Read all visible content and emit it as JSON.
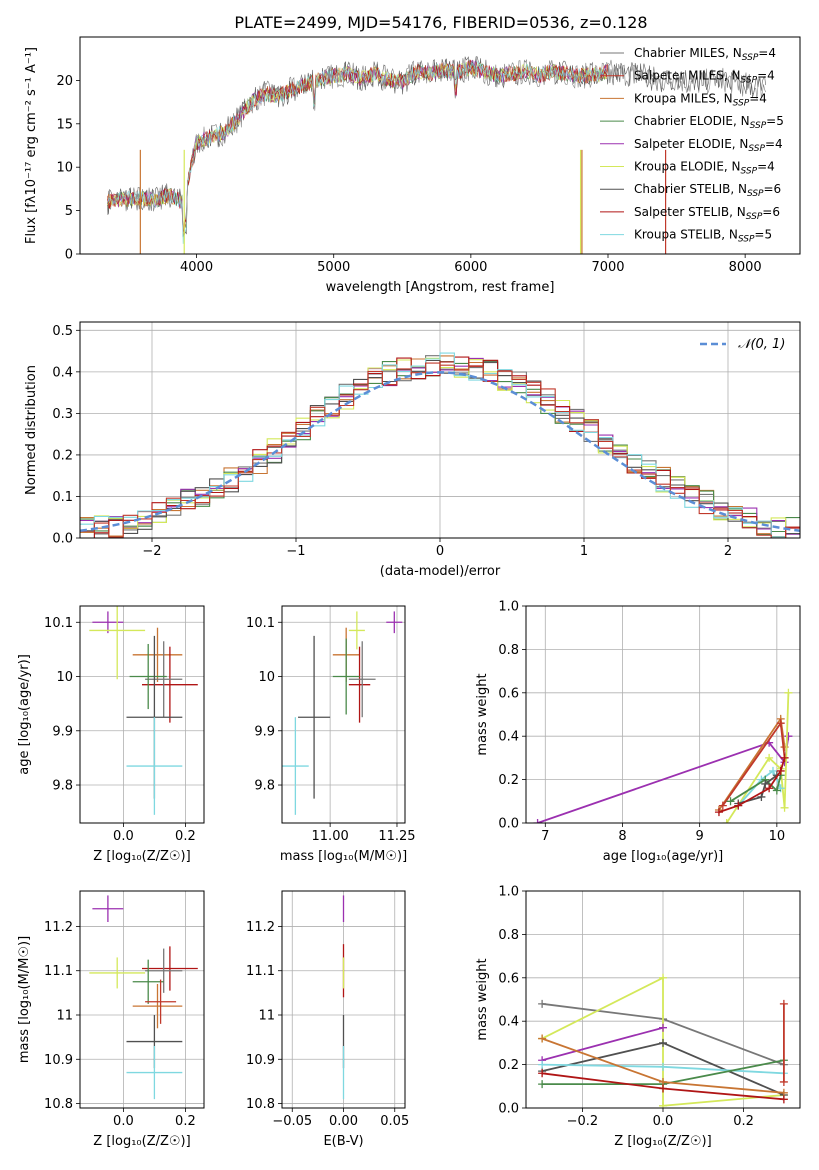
{
  "figure_title": "PLATE=2499, MJD=54176, FIBERID=0536, z=0.128",
  "series": [
    {
      "model": "Chabrier",
      "lib": "MILES",
      "nssp": "4",
      "color": "#777777"
    },
    {
      "model": "Salpeter",
      "lib": "MILES",
      "nssp": "4",
      "color": "#c0392b"
    },
    {
      "model": "Kroupa",
      "lib": "MILES",
      "nssp": "4",
      "color": "#c87533"
    },
    {
      "model": "Chabrier",
      "lib": "ELODIE",
      "nssp": "5",
      "color": "#4a8a4a"
    },
    {
      "model": "Salpeter",
      "lib": "ELODIE",
      "nssp": "4",
      "color": "#9b30b0"
    },
    {
      "model": "Kroupa",
      "lib": "ELODIE",
      "nssp": "4",
      "color": "#d4e85a"
    },
    {
      "model": "Chabrier",
      "lib": "STELIB",
      "nssp": "6",
      "color": "#505050"
    },
    {
      "model": "Salpeter",
      "lib": "STELIB",
      "nssp": "6",
      "color": "#b01515"
    },
    {
      "model": "Kroupa",
      "lib": "STELIB",
      "nssp": "5",
      "color": "#7fd8e0"
    }
  ],
  "chart_data": [
    {
      "id": "spectrum",
      "type": "line",
      "xlabel": "wavelength [Angstrom, rest frame]",
      "ylabel": "Flux [fλ10⁻¹⁷ erg cm⁻² s⁻¹ A⁻¹]",
      "xlim": [
        3150,
        8400
      ],
      "ylim": [
        0,
        25
      ],
      "xticks": [
        4000,
        5000,
        6000,
        7000,
        8000
      ],
      "yticks": [
        0,
        5,
        10,
        15,
        20
      ],
      "x": [
        3350,
        3500,
        3600,
        3700,
        3800,
        3900,
        4000,
        4100,
        4200,
        4300,
        4400,
        4500,
        4600,
        4700,
        4800,
        4900,
        5000,
        5100,
        5200,
        5300,
        5400,
        5500,
        5600,
        5700,
        5800,
        5900,
        6000,
        6100,
        6200,
        6300,
        6400,
        6500,
        6600,
        6700,
        6800,
        6900,
        7000,
        7100,
        7200,
        7300,
        7400,
        7500,
        7600,
        7700,
        7800,
        7900,
        8000,
        8100
      ],
      "y": [
        6.0,
        6.3,
        6.5,
        6.2,
        6.8,
        5.9,
        12.8,
        13.5,
        14.0,
        15.5,
        17.5,
        18.5,
        18.2,
        19.0,
        19.5,
        20.2,
        20.5,
        20.8,
        20.2,
        20.8,
        20.0,
        19.8,
        21.0,
        20.8,
        21.2,
        21.0,
        21.5,
        21.0,
        20.5,
        20.8,
        21.0,
        20.6,
        21.0,
        20.8,
        20.5,
        20.6,
        21.0,
        20.8,
        20.6,
        20.4,
        20.0,
        20.2,
        19.6,
        19.8,
        20.2,
        19.9,
        19.5,
        19.2
      ],
      "legend_position": "upper right",
      "legend_entries": [
        "Chabrier MILES, N_SSP=4",
        "Salpeter MILES, N_SSP=4",
        "Kroupa MILES, N_SSP=4",
        "Chabrier ELODIE, N_SSP=5",
        "Salpeter ELODIE, N_SSP=4",
        "Kroupa ELODIE, N_SSP=4",
        "Chabrier STELIB, N_SSP=6",
        "Salpeter STELIB, N_SSP=6",
        "Kroupa STELIB, N_SSP=5"
      ]
    },
    {
      "id": "residuals",
      "type": "line",
      "xlabel": "(data-model)/error",
      "ylabel": "Normed distribution",
      "xlim": [
        -2.5,
        2.5
      ],
      "ylim": [
        0,
        0.52
      ],
      "xticks": [
        -2,
        -1,
        0,
        1,
        2
      ],
      "yticks": [
        0.0,
        0.1,
        0.2,
        0.3,
        0.4,
        0.5
      ],
      "grid": true,
      "legend_position": "upper right",
      "gaussian_label": "𝒩(0, 1)",
      "bins": [
        -2.5,
        -2.4,
        -2.3,
        -2.2,
        -2.1,
        -2.0,
        -1.9,
        -1.8,
        -1.7,
        -1.6,
        -1.5,
        -1.4,
        -1.3,
        -1.2,
        -1.1,
        -1.0,
        -0.9,
        -0.8,
        -0.7,
        -0.6,
        -0.5,
        -0.4,
        -0.3,
        -0.2,
        -0.1,
        0.0,
        0.1,
        0.2,
        0.3,
        0.4,
        0.5,
        0.6,
        0.7,
        0.8,
        0.9,
        1.0,
        1.1,
        1.2,
        1.3,
        1.4,
        1.5,
        1.6,
        1.7,
        1.8,
        1.9,
        2.0,
        2.1,
        2.2,
        2.3,
        2.4,
        2.5
      ],
      "hist": [
        0.02,
        0.025,
        0.032,
        0.04,
        0.05,
        0.06,
        0.075,
        0.09,
        0.105,
        0.125,
        0.14,
        0.16,
        0.185,
        0.21,
        0.24,
        0.265,
        0.29,
        0.315,
        0.34,
        0.36,
        0.38,
        0.395,
        0.405,
        0.41,
        0.415,
        0.42,
        0.415,
        0.41,
        0.4,
        0.385,
        0.37,
        0.35,
        0.33,
        0.305,
        0.28,
        0.255,
        0.23,
        0.205,
        0.18,
        0.16,
        0.14,
        0.12,
        0.1,
        0.085,
        0.07,
        0.058,
        0.045,
        0.036,
        0.028,
        0.02
      ]
    },
    {
      "id": "age-vs-z",
      "type": "scatter",
      "xlabel": "Z [log₁₀(Z/Z☉)]",
      "ylabel": "age  [log₁₀(age/yr)]",
      "xlim": [
        -0.14,
        0.26
      ],
      "ylim": [
        9.73,
        10.13
      ],
      "xticks": [
        0.0,
        0.2
      ],
      "yticks": [
        9.8,
        9.9,
        10.0,
        10.1
      ],
      "grid": true,
      "points": [
        {
          "s": 4,
          "x": -0.05,
          "y": 10.1,
          "xe": 0.05,
          "ye": 0.02
        },
        {
          "s": 5,
          "x": -0.02,
          "y": 10.085,
          "xe": 0.09,
          "ye": 0.09
        },
        {
          "s": 2,
          "x": 0.11,
          "y": 10.04,
          "xe": 0.08,
          "ye": 0.05
        },
        {
          "s": 7,
          "x": 0.15,
          "y": 9.985,
          "xe": 0.09,
          "ye": 0.07
        },
        {
          "s": 0,
          "x": 0.13,
          "y": 9.995,
          "xe": 0.06,
          "ye": 0.07
        },
        {
          "s": 3,
          "x": 0.08,
          "y": 10.0,
          "xe": 0.06,
          "ye": 0.06
        },
        {
          "s": 6,
          "x": 0.1,
          "y": 9.925,
          "xe": 0.09,
          "ye": 0.15
        },
        {
          "s": 8,
          "x": 0.1,
          "y": 9.835,
          "xe": 0.09,
          "ye": 0.09
        }
      ]
    },
    {
      "id": "age-vs-mass",
      "type": "scatter",
      "xlabel": "mass [log₁₀(M/M☉)]",
      "ylabel": "",
      "xlim": [
        10.82,
        11.28
      ],
      "ylim": [
        9.73,
        10.13
      ],
      "xticks": [
        11.0,
        11.25
      ],
      "yticks": [
        9.8,
        9.9,
        10.0,
        10.1
      ],
      "grid": true,
      "points": [
        {
          "s": 4,
          "x": 11.24,
          "y": 10.1,
          "xe": 0.03,
          "ye": 0.02
        },
        {
          "s": 5,
          "x": 11.1,
          "y": 10.085,
          "xe": 0.03,
          "ye": 0.035
        },
        {
          "s": 2,
          "x": 11.06,
          "y": 10.04,
          "xe": 0.05,
          "ye": 0.05
        },
        {
          "s": 7,
          "x": 11.11,
          "y": 9.985,
          "xe": 0.04,
          "ye": 0.07
        },
        {
          "s": 0,
          "x": 11.12,
          "y": 9.995,
          "xe": 0.05,
          "ye": 0.07
        },
        {
          "s": 3,
          "x": 11.06,
          "y": 10.0,
          "xe": 0.05,
          "ye": 0.07
        },
        {
          "s": 6,
          "x": 10.94,
          "y": 9.925,
          "xe": 0.06,
          "ye": 0.15
        },
        {
          "s": 8,
          "x": 10.87,
          "y": 9.835,
          "xe": 0.05,
          "ye": 0.09
        }
      ]
    },
    {
      "id": "weight-vs-age",
      "type": "line",
      "xlabel": "age  [log₁₀(age/yr)]",
      "ylabel": "mass weight",
      "xlim": [
        6.75,
        10.3
      ],
      "ylim": [
        0,
        1
      ],
      "xticks": [
        7,
        8,
        9,
        10
      ],
      "yticks": [
        0.0,
        0.2,
        0.4,
        0.6,
        0.8,
        1.0
      ],
      "grid": true,
      "lines": [
        {
          "s": 4,
          "x": [
            6.9,
            9.9,
            10.1,
            10.15
          ],
          "y": [
            0.0,
            0.37,
            0.28,
            0.4
          ]
        },
        {
          "s": 2,
          "x": [
            9.25,
            10.05,
            10.1
          ],
          "y": [
            0.06,
            0.48,
            0.35
          ]
        },
        {
          "s": 1,
          "x": [
            9.3,
            10.05,
            10.1
          ],
          "y": [
            0.08,
            0.46,
            0.3
          ]
        },
        {
          "s": 5,
          "x": [
            9.35,
            9.9,
            10.05,
            10.1,
            10.15
          ],
          "y": [
            0.0,
            0.3,
            0.25,
            0.07,
            0.6
          ]
        },
        {
          "s": 8,
          "x": [
            9.5,
            9.8,
            9.95,
            10.05
          ],
          "y": [
            0.08,
            0.2,
            0.24,
            0.16
          ]
        },
        {
          "s": 3,
          "x": [
            9.4,
            9.85,
            10.0,
            10.05
          ],
          "y": [
            0.1,
            0.2,
            0.15,
            0.22
          ]
        },
        {
          "s": 6,
          "x": [
            9.5,
            9.8,
            9.85,
            10.0
          ],
          "y": [
            0.09,
            0.12,
            0.18,
            0.22
          ]
        },
        {
          "s": 7,
          "x": [
            9.25,
            9.5,
            9.9,
            10.05,
            10.1
          ],
          "y": [
            0.05,
            0.08,
            0.16,
            0.24,
            0.3
          ]
        }
      ]
    },
    {
      "id": "mass-vs-z",
      "type": "scatter",
      "xlabel": "Z [log₁₀(Z/Z☉)]",
      "ylabel": "mass [log₁₀(M/M☉)]",
      "xlim": [
        -0.14,
        0.26
      ],
      "ylim": [
        10.79,
        11.28
      ],
      "xticks": [
        0.0,
        0.2
      ],
      "yticks": [
        10.8,
        10.9,
        11.0,
        11.1,
        11.2
      ],
      "grid": true,
      "points": [
        {
          "s": 4,
          "x": -0.05,
          "y": 11.24,
          "xe": 0.05,
          "ye": 0.03
        },
        {
          "s": 5,
          "x": -0.02,
          "y": 11.095,
          "xe": 0.09,
          "ye": 0.035
        },
        {
          "s": 2,
          "x": 0.11,
          "y": 11.02,
          "xe": 0.08,
          "ye": 0.05
        },
        {
          "s": 7,
          "x": 0.15,
          "y": 11.105,
          "xe": 0.09,
          "ye": 0.05
        },
        {
          "s": 0,
          "x": 0.13,
          "y": 11.1,
          "xe": 0.06,
          "ye": 0.05
        },
        {
          "s": 3,
          "x": 0.08,
          "y": 11.075,
          "xe": 0.05,
          "ye": 0.05
        },
        {
          "s": 6,
          "x": 0.1,
          "y": 10.94,
          "xe": 0.09,
          "ye": 0.06
        },
        {
          "s": 8,
          "x": 0.1,
          "y": 10.87,
          "xe": 0.09,
          "ye": 0.06
        },
        {
          "s": 1,
          "x": 0.12,
          "y": 11.03,
          "xe": 0.05,
          "ye": 0.05
        }
      ]
    },
    {
      "id": "mass-vs-ebv",
      "type": "scatter",
      "xlabel": "E(B-V)",
      "ylabel": "",
      "xlim": [
        -0.06,
        0.06
      ],
      "ylim": [
        10.79,
        11.28
      ],
      "xticks": [
        -0.05,
        0.0,
        0.05
      ],
      "yticks": [
        10.8,
        10.9,
        11.0,
        11.1,
        11.2
      ],
      "grid": true,
      "points": [
        {
          "s": 4,
          "x": 0.0,
          "y": 11.24,
          "xe": 0.0,
          "ye": 0.03
        },
        {
          "s": 7,
          "x": 0.0,
          "y": 11.1,
          "xe": 0.0,
          "ye": 0.06
        },
        {
          "s": 5,
          "x": 0.0,
          "y": 11.095,
          "xe": 0.0,
          "ye": 0.035
        },
        {
          "s": 6,
          "x": 0.0,
          "y": 10.94,
          "xe": 0.0,
          "ye": 0.06
        },
        {
          "s": 8,
          "x": 0.0,
          "y": 10.87,
          "xe": 0.0,
          "ye": 0.06
        }
      ]
    },
    {
      "id": "weight-vs-z",
      "type": "line",
      "xlabel": "Z [log₁₀(Z/Z☉)]",
      "ylabel": "mass weight",
      "xlim": [
        -0.34,
        0.34
      ],
      "ylim": [
        0,
        1
      ],
      "xticks": [
        -0.2,
        0.0,
        0.2
      ],
      "yticks": [
        0.0,
        0.2,
        0.4,
        0.6,
        0.8,
        1.0
      ],
      "grid": true,
      "lines": [
        {
          "s": 0,
          "x": [
            -0.3,
            0.0,
            0.3
          ],
          "y": [
            0.48,
            0.41,
            0.2
          ]
        },
        {
          "s": 5,
          "x": [
            -0.3,
            0.0,
            0.0,
            0.3
          ],
          "y": [
            0.32,
            0.6,
            0.01,
            0.06
          ]
        },
        {
          "s": 4,
          "x": [
            -0.3,
            0.0
          ],
          "y": [
            0.22,
            0.37
          ]
        },
        {
          "s": 6,
          "x": [
            -0.3,
            0.0,
            0.3
          ],
          "y": [
            0.17,
            0.3,
            0.06
          ]
        },
        {
          "s": 8,
          "x": [
            -0.3,
            0.0,
            0.3
          ],
          "y": [
            0.2,
            0.19,
            0.16
          ]
        },
        {
          "s": 3,
          "x": [
            -0.3,
            0.0,
            0.3
          ],
          "y": [
            0.11,
            0.11,
            0.22
          ]
        },
        {
          "s": 2,
          "x": [
            -0.3,
            0.0,
            0.3
          ],
          "y": [
            0.32,
            0.12,
            0.07
          ]
        },
        {
          "s": 7,
          "x": [
            -0.3,
            0.0,
            0.3
          ],
          "y": [
            0.16,
            0.09,
            0.04
          ]
        },
        {
          "s": 1,
          "x": [
            0.3,
            0.3
          ],
          "y": [
            0.48,
            0.12
          ]
        }
      ]
    }
  ]
}
